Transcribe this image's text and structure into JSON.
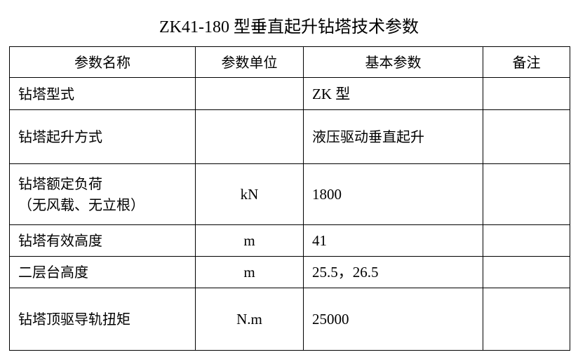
{
  "title": "ZK41-180 型垂直起升钻塔技术参数",
  "headers": [
    "参数名称",
    "参数单位",
    "基本参数",
    "备注"
  ],
  "rows": [
    {
      "name": "钻塔型式",
      "name2": "",
      "unit": "",
      "value": "ZK 型",
      "note": ""
    },
    {
      "name": "钻塔起升方式",
      "name2": "",
      "unit": "",
      "value": "液压驱动垂直起升",
      "note": ""
    },
    {
      "name": "钻塔额定负荷",
      "name2": "（无风载、无立根）",
      "unit": "kN",
      "value": "1800",
      "note": ""
    },
    {
      "name": "钻塔有效高度",
      "name2": "",
      "unit": "m",
      "value": "41",
      "note": ""
    },
    {
      "name": "二层台高度",
      "name2": "",
      "unit": "m",
      "value": "25.5，26.5",
      "note": ""
    },
    {
      "name": "钻塔顶驱导轨扭矩",
      "name2": "",
      "unit": "N.m",
      "value": "25000",
      "note": ""
    }
  ]
}
